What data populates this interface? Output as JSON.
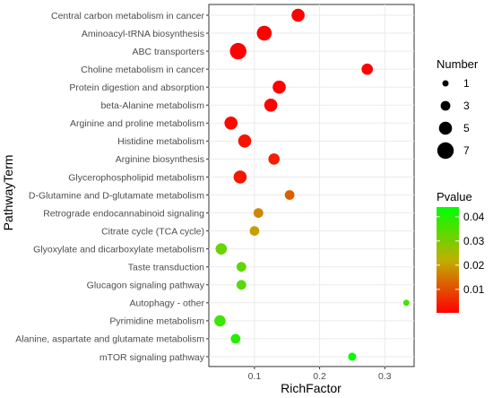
{
  "chart_data": {
    "type": "scatter",
    "xlabel": "RichFactor",
    "ylabel": "PathwayTerm",
    "xlim": [
      0.03,
      0.345
    ],
    "x_ticks": [
      "0.1",
      "0.2",
      "0.3"
    ],
    "x_tick_values": [
      0.1,
      0.2,
      0.3
    ],
    "grid": true,
    "legend_position": "right",
    "pathways": [
      "Central carbon metabolism in cancer",
      "Aminoacyl-tRNA biosynthesis",
      "ABC transporters",
      "Choline metabolism in cancer",
      "Protein digestion and absorption",
      "beta-Alanine metabolism",
      "Arginine and proline metabolism",
      "Histidine metabolism",
      "Arginine biosynthesis",
      "Glycerophospholipid metabolism",
      "D-Glutamine and D-glutamate metabolism",
      "Retrograde endocannabinoid signaling",
      "Citrate cycle (TCA cycle)",
      "Glyoxylate and dicarboxylate metabolism",
      "Taste transduction",
      "Glucagon signaling pathway",
      "Autophagy - other",
      "Pyrimidine metabolism",
      "Alanine, aspartate and glutamate metabolism",
      "mTOR signaling pathway"
    ],
    "points": [
      {
        "pathway": "Central carbon metabolism in cancer",
        "rich_factor": 0.167,
        "number": 5,
        "pvalue": 0.0003
      },
      {
        "pathway": "Aminoacyl-tRNA biosynthesis",
        "rich_factor": 0.115,
        "number": 6,
        "pvalue": 0.0004
      },
      {
        "pathway": "ABC transporters",
        "rich_factor": 0.075,
        "number": 7,
        "pvalue": 0.0004
      },
      {
        "pathway": "Choline metabolism in cancer",
        "rich_factor": 0.273,
        "number": 4,
        "pvalue": 0.0005
      },
      {
        "pathway": "Protein digestion and absorption",
        "rich_factor": 0.138,
        "number": 5,
        "pvalue": 0.0006
      },
      {
        "pathway": "beta-Alanine metabolism",
        "rich_factor": 0.125,
        "number": 5,
        "pvalue": 0.0008
      },
      {
        "pathway": "Arginine and proline metabolism",
        "rich_factor": 0.064,
        "number": 5,
        "pvalue": 0.0015
      },
      {
        "pathway": "Histidine metabolism",
        "rich_factor": 0.085,
        "number": 5,
        "pvalue": 0.0025
      },
      {
        "pathway": "Arginine biosynthesis",
        "rich_factor": 0.13,
        "number": 4,
        "pvalue": 0.004
      },
      {
        "pathway": "Glycerophospholipid metabolism",
        "rich_factor": 0.078,
        "number": 5,
        "pvalue": 0.003
      },
      {
        "pathway": "D-Glutamine and D-glutamate metabolism",
        "rich_factor": 0.154,
        "number": 3,
        "pvalue": 0.012
      },
      {
        "pathway": "Retrograde endocannabinoid signaling",
        "rich_factor": 0.106,
        "number": 3,
        "pvalue": 0.017
      },
      {
        "pathway": "Citrate cycle (TCA cycle)",
        "rich_factor": 0.1,
        "number": 3,
        "pvalue": 0.02
      },
      {
        "pathway": "Glyoxylate and dicarboxylate metabolism",
        "rich_factor": 0.049,
        "number": 4,
        "pvalue": 0.032
      },
      {
        "pathway": "Taste transduction",
        "rich_factor": 0.08,
        "number": 3,
        "pvalue": 0.033
      },
      {
        "pathway": "Glucagon signaling pathway",
        "rich_factor": 0.08,
        "number": 3,
        "pvalue": 0.034
      },
      {
        "pathway": "Autophagy - other",
        "rich_factor": 0.333,
        "number": 1,
        "pvalue": 0.036
      },
      {
        "pathway": "Pyrimidine metabolism",
        "rich_factor": 0.047,
        "number": 4,
        "pvalue": 0.037
      },
      {
        "pathway": "Alanine, aspartate and glutamate metabolism",
        "rich_factor": 0.071,
        "number": 3,
        "pvalue": 0.04
      },
      {
        "pathway": "mTOR signaling pathway",
        "rich_factor": 0.25,
        "number": 2,
        "pvalue": 0.043
      }
    ],
    "size_legend": {
      "title": "Number",
      "values": [
        1,
        3,
        5,
        7
      ],
      "labels": [
        "1",
        "3",
        "5",
        "7"
      ]
    },
    "color_legend": {
      "title": "Pvalue",
      "range": [
        0.0003,
        0.044
      ],
      "ticks": [
        0.01,
        0.02,
        0.03,
        0.04
      ],
      "tick_labels": [
        "0.01",
        "0.02",
        "0.03",
        "0.04"
      ],
      "low_color": "#ff0000",
      "high_color": "#00ff00"
    }
  }
}
